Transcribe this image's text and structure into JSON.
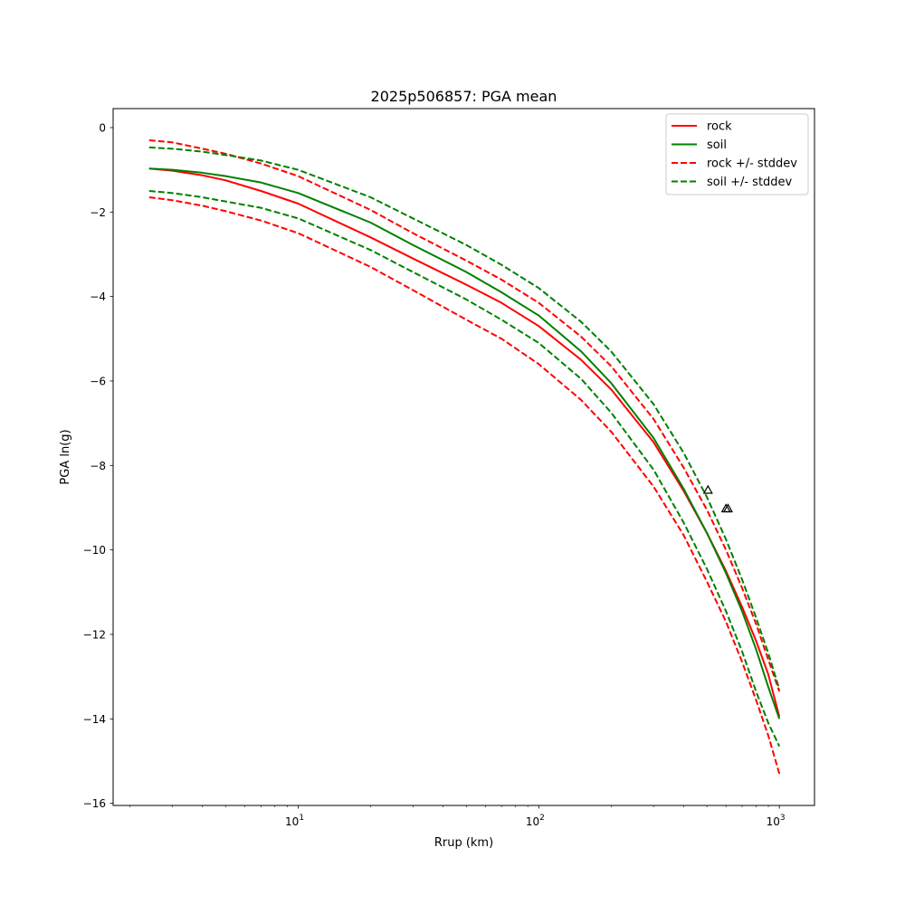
{
  "chart_data": {
    "type": "line",
    "title": "2025p506857: PGA mean",
    "xlabel": "Rrup (km)",
    "ylabel": "PGA ln(g)",
    "xscale": "log",
    "xlim": [
      1.7,
      1400
    ],
    "ylim": [
      -16.05,
      0.45
    ],
    "x_ticks": [
      {
        "value": 10,
        "base": "10",
        "exp": "1"
      },
      {
        "value": 100,
        "base": "10",
        "exp": "2"
      },
      {
        "value": 1000,
        "base": "10",
        "exp": "3"
      }
    ],
    "y_ticks": [
      {
        "value": 0,
        "label": "0"
      },
      {
        "value": -2,
        "label": "−2"
      },
      {
        "value": -4,
        "label": "−4"
      },
      {
        "value": -6,
        "label": "−6"
      },
      {
        "value": -8,
        "label": "−8"
      },
      {
        "value": -10,
        "label": "−10"
      },
      {
        "value": -12,
        "label": "−12"
      },
      {
        "value": -14,
        "label": "−14"
      },
      {
        "value": -16,
        "label": "−16"
      }
    ],
    "grid": false,
    "legend_position": "top-right",
    "x": [
      2.4,
      3,
      4,
      5,
      7,
      10,
      20,
      30,
      50,
      70,
      100,
      150,
      200,
      300,
      400,
      500,
      600,
      700,
      800,
      900,
      1000
    ],
    "series": [
      {
        "name": "rock",
        "style": "solid",
        "color": "#ff0000",
        "in_legend": true,
        "values": [
          -0.97,
          -1.02,
          -1.13,
          -1.25,
          -1.5,
          -1.8,
          -2.6,
          -3.1,
          -3.72,
          -4.15,
          -4.7,
          -5.5,
          -6.2,
          -7.45,
          -8.6,
          -9.6,
          -10.5,
          -11.35,
          -12.15,
          -12.95,
          -13.95
        ]
      },
      {
        "name": "soil",
        "style": "solid",
        "color": "#008000",
        "in_legend": true,
        "values": [
          -0.97,
          -1.0,
          -1.07,
          -1.15,
          -1.3,
          -1.55,
          -2.25,
          -2.78,
          -3.42,
          -3.9,
          -4.45,
          -5.3,
          -6.05,
          -7.35,
          -8.55,
          -9.6,
          -10.55,
          -11.45,
          -12.35,
          -13.25,
          -14.0
        ]
      },
      {
        "name": "rock +/- stddev",
        "style": "dashed",
        "color": "#ff0000",
        "in_legend": true,
        "values": [
          -0.3,
          -0.35,
          -0.5,
          -0.62,
          -0.85,
          -1.15,
          -1.95,
          -2.5,
          -3.15,
          -3.6,
          -4.15,
          -4.95,
          -5.65,
          -6.9,
          -8.05,
          -9.05,
          -10.0,
          -10.9,
          -11.75,
          -12.6,
          -13.35
        ]
      },
      {
        "name": "rock +/- stddev",
        "style": "dashed",
        "color": "#ff0000",
        "in_legend": false,
        "values": [
          -1.65,
          -1.72,
          -1.85,
          -1.98,
          -2.2,
          -2.5,
          -3.3,
          -3.85,
          -4.55,
          -5.0,
          -5.6,
          -6.45,
          -7.2,
          -8.5,
          -9.65,
          -10.75,
          -11.7,
          -12.65,
          -13.55,
          -14.4,
          -15.3
        ]
      },
      {
        "name": "soil +/- stddev",
        "style": "dashed",
        "color": "#008000",
        "in_legend": true,
        "values": [
          -0.47,
          -0.5,
          -0.57,
          -0.65,
          -0.78,
          -1.0,
          -1.65,
          -2.15,
          -2.78,
          -3.25,
          -3.8,
          -4.6,
          -5.3,
          -6.55,
          -7.7,
          -8.75,
          -9.75,
          -10.7,
          -11.6,
          -12.45,
          -13.3
        ]
      },
      {
        "name": "soil +/- stddev",
        "style": "dashed",
        "color": "#008000",
        "in_legend": false,
        "values": [
          -1.5,
          -1.55,
          -1.65,
          -1.75,
          -1.9,
          -2.15,
          -2.9,
          -3.42,
          -4.07,
          -4.55,
          -5.1,
          -5.95,
          -6.75,
          -8.1,
          -9.35,
          -10.45,
          -11.45,
          -12.4,
          -13.35,
          -14.1,
          -14.65
        ]
      }
    ],
    "markers": {
      "shape": "triangle",
      "color": "#000000",
      "points": [
        {
          "x": 505,
          "y": -8.58
        },
        {
          "x": 600,
          "y": -9.02
        },
        {
          "x": 612,
          "y": -9.02
        }
      ]
    }
  }
}
